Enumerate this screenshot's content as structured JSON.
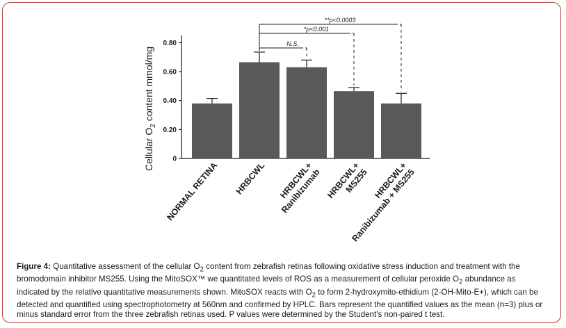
{
  "chart_data": {
    "type": "bar",
    "categories": [
      "NORMAL RETINA",
      "HRBCWL",
      "HRBCWL+ Ranibizumab",
      "HRBCWL+ MS255",
      "HRBCWL+ Ranibizumab + MS255"
    ],
    "category_lines": [
      [
        "NORMAL RETINA"
      ],
      [
        "HRBCWL"
      ],
      [
        "HRBCWL+",
        "Ranibizumab"
      ],
      [
        "HRBCWL+",
        "MS255"
      ],
      [
        "HRBCWL+",
        "Ranibizumab + MS255"
      ]
    ],
    "values": [
      0.38,
      0.665,
      0.63,
      0.465,
      0.38
    ],
    "errors": [
      0.035,
      0.07,
      0.05,
      0.025,
      0.07
    ],
    "ylabel_pre": "Cellular O",
    "ylabel_sub": "2",
    "ylabel_post": " content mmol/mg",
    "ylim": [
      0,
      0.85
    ],
    "yticks": [
      0,
      0.2,
      0.4,
      0.6,
      0.8
    ],
    "ytick_labels": [
      "0",
      "0.20",
      "0.40",
      "0.60",
      "0.80"
    ],
    "bar_color": "#595959",
    "comparisons": [
      {
        "from": 1,
        "to": 2,
        "label": "N.S."
      },
      {
        "from": 1,
        "to": 3,
        "label": "*p<0.001"
      },
      {
        "from": 1,
        "to": 4,
        "label": "**p<0.0003"
      }
    ]
  },
  "caption": {
    "label": "Figure 4:",
    "t1": " Quantitative assessment of the cellular O",
    "t1_sub": "2",
    "t2": " content from zebrafish retinas following oxidative stress induction and treatment with the bromodomain inhibitor MS255. Using the MitoSOX™ we quantitated levels of ROS as a measurement of cellular peroxide O",
    "t2_sub": "2",
    "t3": " abundance as indicated by the relative quantitative measurements shown. MitoSOX reacts with O",
    "t3_sub": "2",
    "t4": " to form 2-hydroxymito-ethidium (2-OH-Mito-E+), which can be detected and quantified using spectrophotometry at 560nm and confirmed by HPLC. Bars represent the quantified values as the mean (n=3) plus or minus standard error from the three zebrafish retinas used. P values were determined by the Student's non-paired t test."
  }
}
